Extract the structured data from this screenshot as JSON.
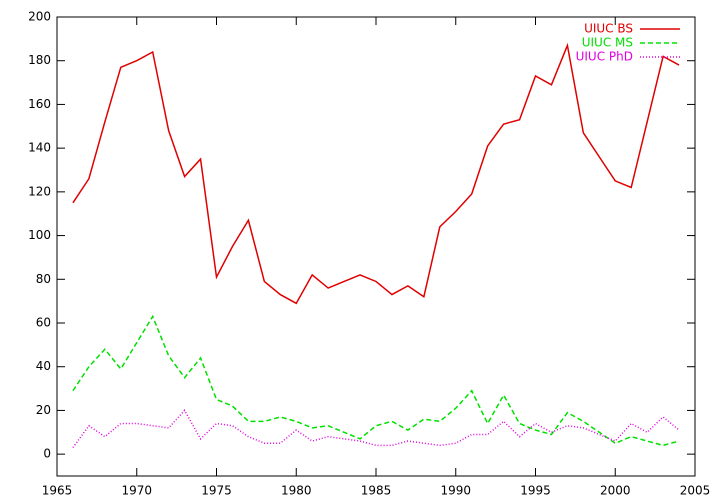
{
  "chart_data": {
    "type": "line",
    "x": [
      1966,
      1967,
      1968,
      1969,
      1970,
      1971,
      1972,
      1973,
      1974,
      1975,
      1976,
      1977,
      1978,
      1979,
      1980,
      1981,
      1982,
      1983,
      1984,
      1985,
      1986,
      1987,
      1988,
      1989,
      1990,
      1991,
      1992,
      1993,
      1994,
      1995,
      1996,
      1997,
      1998,
      1999,
      2000,
      2001,
      2002,
      2003,
      2004
    ],
    "series": [
      {
        "name": "UIUC BS",
        "color": "#e00000",
        "dash": "none",
        "values": [
          115,
          126,
          152,
          177,
          180,
          184,
          148,
          127,
          135,
          81,
          95,
          107,
          79,
          73,
          69,
          82,
          76,
          79,
          82,
          79,
          73,
          77,
          72,
          104,
          111,
          119,
          141,
          151,
          153,
          173,
          169,
          187,
          147,
          136,
          125,
          122,
          152,
          182,
          178
        ]
      },
      {
        "name": "UIUC MS",
        "color": "#00e000",
        "dash": "5,3",
        "values": [
          29,
          40,
          48,
          39,
          51,
          63,
          45,
          35,
          44,
          25,
          22,
          15,
          15,
          17,
          15,
          12,
          13,
          10,
          7,
          13,
          15,
          11,
          16,
          15,
          21,
          29,
          14,
          27,
          14,
          11,
          9,
          19,
          15,
          10,
          5,
          8,
          6,
          4,
          6
        ]
      },
      {
        "name": "UIUC PhD",
        "color": "#e000e0",
        "dash": "1,2",
        "values": [
          3,
          13,
          8,
          14,
          14,
          13,
          12,
          20,
          7,
          14,
          13,
          8,
          5,
          5,
          11,
          6,
          8,
          7,
          6,
          4,
          4,
          6,
          5,
          4,
          5,
          9,
          9,
          15,
          8,
          14,
          10,
          13,
          12,
          9,
          6,
          14,
          10,
          17,
          11
        ]
      }
    ],
    "xlim": [
      1965,
      2005
    ],
    "xticks": [
      1965,
      1970,
      1975,
      1980,
      1985,
      1990,
      1995,
      2000,
      2005
    ],
    "ylim": [
      -10,
      200
    ],
    "yticks": [
      0,
      20,
      40,
      60,
      80,
      100,
      120,
      140,
      160,
      180,
      200
    ],
    "legend": "top-right"
  }
}
